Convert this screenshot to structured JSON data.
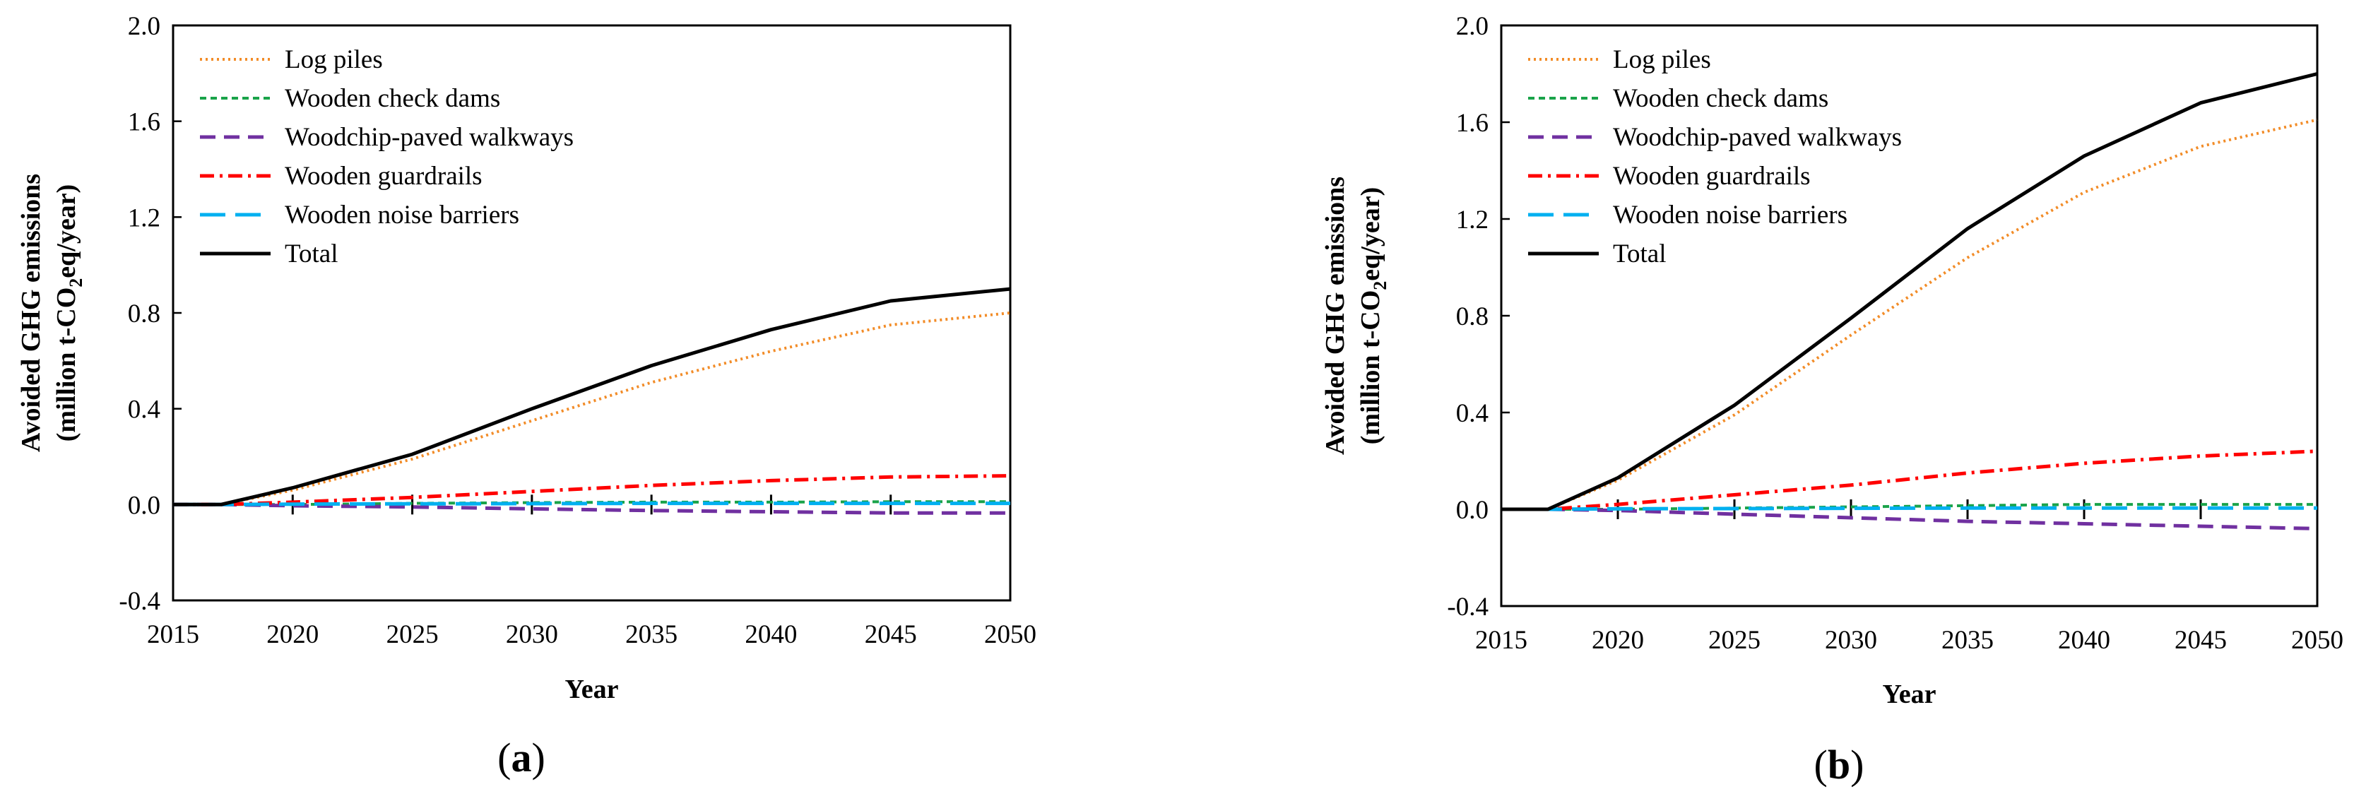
{
  "figure": {
    "series_style": {
      "Log piles": {
        "color": "#f28c28",
        "dash": "3,5",
        "width": 4
      },
      "Wooden check dams": {
        "color": "#1aa34a",
        "dash": "9,6",
        "width": 4
      },
      "Woodchip-paved walkways": {
        "color": "#7030a0",
        "dash": "22,12",
        "width": 5
      },
      "Wooden guardrails": {
        "color": "#ff0000",
        "dash": "20,8,4,8",
        "width": 5
      },
      "Wooden noise barriers": {
        "color": "#00b0f0",
        "dash": "36,14",
        "width": 5
      },
      "Total": {
        "color": "#000000",
        "dash": "none",
        "width": 5
      }
    }
  },
  "chart_data": [
    {
      "type": "line",
      "panel_label": "a",
      "xlabel": "Year",
      "ylabel_line1": "Avoided GHG emissions",
      "ylabel_line2_prefix": "(million t-CO",
      "ylabel_subscript": "2",
      "ylabel_line2_suffix": "eq/year)",
      "xlim": [
        2015,
        2050
      ],
      "ylim": [
        -0.4,
        2.0
      ],
      "xticks": [
        2015,
        2020,
        2025,
        2030,
        2035,
        2040,
        2045,
        2050
      ],
      "xtick_labels": [
        "2015",
        "2020",
        "2025",
        "2030",
        "2035",
        "2040",
        "2045",
        "2050"
      ],
      "yticks": [
        -0.4,
        0.0,
        0.4,
        0.8,
        1.2,
        1.6,
        2.0
      ],
      "ytick_labels": [
        "-0.4",
        "0.0",
        "0.4",
        "0.8",
        "1.2",
        "1.6",
        "2.0"
      ],
      "legend_position": "top-left",
      "x": [
        2015,
        2017,
        2020,
        2025,
        2030,
        2035,
        2040,
        2045,
        2050
      ],
      "series": [
        {
          "name": "Log piles",
          "values": [
            0,
            0,
            0.06,
            0.19,
            0.35,
            0.51,
            0.64,
            0.75,
            0.8
          ]
        },
        {
          "name": "Wooden check dams",
          "values": [
            0,
            0,
            0.0,
            0.005,
            0.008,
            0.01,
            0.01,
            0.012,
            0.012
          ]
        },
        {
          "name": "Woodchip-paved walkways",
          "values": [
            0,
            0,
            -0.005,
            -0.01,
            -0.018,
            -0.025,
            -0.03,
            -0.035,
            -0.035
          ]
        },
        {
          "name": "Wooden guardrails",
          "values": [
            0,
            0,
            0.01,
            0.03,
            0.055,
            0.08,
            0.1,
            0.115,
            0.12
          ]
        },
        {
          "name": "Wooden noise barriers",
          "values": [
            0,
            0,
            0.002,
            0.003,
            0.004,
            0.005,
            0.005,
            0.005,
            0.005
          ]
        },
        {
          "name": "Total",
          "values": [
            0,
            0,
            0.07,
            0.21,
            0.4,
            0.58,
            0.73,
            0.85,
            0.9
          ]
        }
      ]
    },
    {
      "type": "line",
      "panel_label": "b",
      "xlabel": "Year",
      "ylabel_line1": "Avoided GHG emissions",
      "ylabel_line2_prefix": "(million t-CO",
      "ylabel_subscript": "2",
      "ylabel_line2_suffix": "eq/year)",
      "xlim": [
        2015,
        2050
      ],
      "ylim": [
        -0.4,
        2.0
      ],
      "xticks": [
        2015,
        2020,
        2025,
        2030,
        2035,
        2040,
        2045,
        2050
      ],
      "xtick_labels": [
        "2015",
        "2020",
        "2025",
        "2030",
        "2035",
        "2040",
        "2045",
        "2050"
      ],
      "yticks": [
        -0.4,
        0.0,
        0.4,
        0.8,
        1.2,
        1.6,
        2.0
      ],
      "ytick_labels": [
        "-0.4",
        "0.0",
        "0.4",
        "0.8",
        "1.2",
        "1.6",
        "2.0"
      ],
      "legend_position": "top-left",
      "x": [
        2015,
        2017,
        2020,
        2025,
        2030,
        2035,
        2040,
        2045,
        2050
      ],
      "series": [
        {
          "name": "Log piles",
          "values": [
            0,
            0,
            0.12,
            0.39,
            0.72,
            1.04,
            1.31,
            1.5,
            1.61
          ]
        },
        {
          "name": "Wooden check dams",
          "values": [
            0,
            0,
            0.0,
            0.005,
            0.01,
            0.015,
            0.02,
            0.02,
            0.02
          ]
        },
        {
          "name": "Woodchip-paved walkways",
          "values": [
            0,
            0,
            -0.005,
            -0.02,
            -0.035,
            -0.05,
            -0.06,
            -0.07,
            -0.08
          ]
        },
        {
          "name": "Wooden guardrails",
          "values": [
            0,
            0,
            0.02,
            0.06,
            0.1,
            0.15,
            0.19,
            0.22,
            0.24
          ]
        },
        {
          "name": "Wooden noise barriers",
          "values": [
            0,
            0,
            0.002,
            0.003,
            0.004,
            0.005,
            0.005,
            0.005,
            0.005
          ]
        },
        {
          "name": "Total",
          "values": [
            0,
            0,
            0.13,
            0.43,
            0.79,
            1.16,
            1.46,
            1.68,
            1.8
          ]
        }
      ]
    }
  ]
}
